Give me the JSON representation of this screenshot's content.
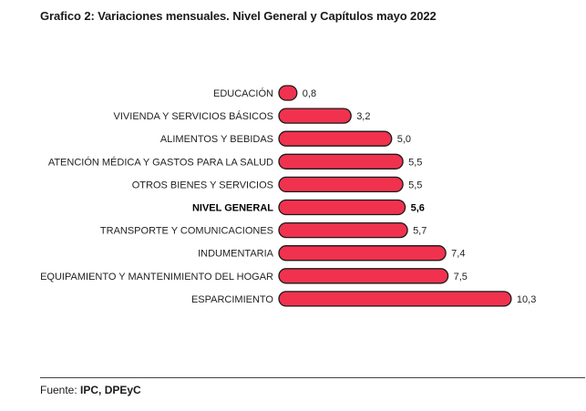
{
  "title": "Grafico 2: Variaciones mensuales.  Nivel General y Capítulos  mayo  2022",
  "source": {
    "label": "Fuente: ",
    "value": "IPC, DPEyC"
  },
  "colors": {
    "bar_fill": "#f0324f",
    "bar_stroke": "#1a1a1a"
  },
  "chart_data": {
    "type": "bar",
    "orientation": "horizontal",
    "categories": [
      "EDUCACIÓN",
      "VIVIENDA Y SERVICIOS BÁSICOS",
      "ALIMENTOS Y BEBIDAS",
      "ATENCIÓN MÉDICA Y GASTOS PARA LA SALUD",
      "OTROS BIENES Y SERVICIOS",
      "NIVEL GENERAL",
      "TRANSPORTE Y COMUNICACIONES",
      "INDUMENTARIA",
      "EQUIPAMIENTO Y MANTENIMIENTO DEL HOGAR",
      "ESPARCIMIENTO"
    ],
    "values": [
      0.8,
      3.2,
      5.0,
      5.5,
      5.5,
      5.6,
      5.7,
      7.4,
      7.5,
      10.3
    ],
    "data_labels": [
      "0,8",
      "3,2",
      "5,0",
      "5,5",
      "5,5",
      "5,6",
      "5,7",
      "7,4",
      "7,5",
      "10,3"
    ],
    "highlight_category": "NIVEL GENERAL",
    "xlim": [
      0,
      10.3
    ],
    "grid": false,
    "legend": "none"
  }
}
